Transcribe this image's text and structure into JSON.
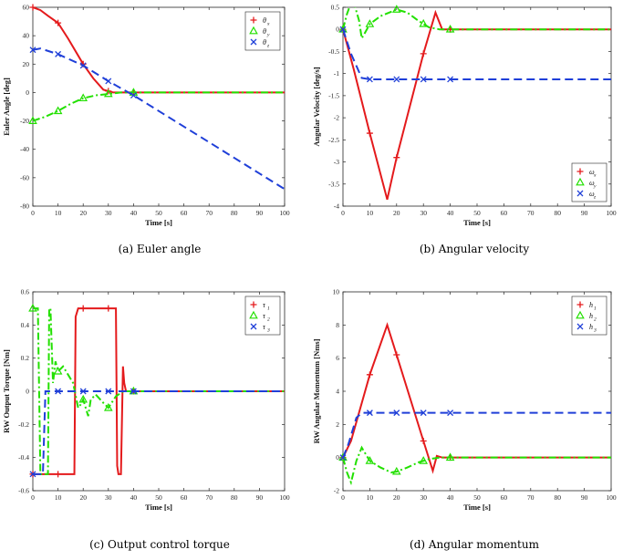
{
  "colors": {
    "red": "#e41a1c",
    "green": "#22e000",
    "blue": "#1f3fd8"
  },
  "chart_data": [
    {
      "type": "line",
      "caption": "(a) Euler angle",
      "xlabel": "Time [s]",
      "ylabel": "Euler Angle [deg]",
      "xlim": [
        0,
        100
      ],
      "ylim": [
        -80,
        60
      ],
      "xticks": [
        0,
        10,
        20,
        30,
        40,
        50,
        60,
        70,
        80,
        90,
        100
      ],
      "yticks": [
        -80,
        -60,
        -40,
        -20,
        0,
        20,
        40,
        60
      ],
      "legend_position": "top-right",
      "series": [
        {
          "name": "θx",
          "label_main": "θ",
          "label_sub": "x",
          "color": "red",
          "marker": "+",
          "dash": "solid",
          "x": [
            0,
            3,
            6,
            10,
            14,
            18,
            20,
            24,
            28,
            32,
            36,
            40,
            50,
            60,
            70,
            80,
            90,
            100
          ],
          "y": [
            60,
            58,
            54,
            49,
            38,
            26,
            20,
            10,
            2,
            0,
            0,
            0,
            0,
            0,
            0,
            0,
            0,
            0
          ]
        },
        {
          "name": "θy",
          "label_main": "θ",
          "label_sub": "y",
          "color": "green",
          "marker": "triangle",
          "dash": "dashdot",
          "x": [
            0,
            5,
            10,
            15,
            20,
            25,
            30,
            35,
            40,
            50,
            60,
            70,
            80,
            90,
            100
          ],
          "y": [
            -20,
            -17,
            -13,
            -8,
            -4,
            -2,
            -1,
            0,
            0,
            0,
            0,
            0,
            0,
            0,
            0
          ]
        },
        {
          "name": "θz",
          "label_main": "θ",
          "label_sub": "z",
          "color": "blue",
          "marker": "x",
          "dash": "dashed",
          "x": [
            0,
            3,
            10,
            20,
            30,
            40,
            50,
            60,
            70,
            80,
            90,
            100
          ],
          "y": [
            30,
            31,
            27,
            19,
            8,
            -2,
            -13,
            -24,
            -35,
            -46,
            -57,
            -68
          ]
        }
      ]
    },
    {
      "type": "line",
      "caption": "(b) Angular velocity",
      "xlabel": "Time [s]",
      "ylabel": "Angular Velocity [deg/s]",
      "xlim": [
        0,
        100
      ],
      "ylim": [
        -4,
        0.5
      ],
      "xticks": [
        0,
        10,
        20,
        30,
        40,
        50,
        60,
        70,
        80,
        90,
        100
      ],
      "yticks": [
        -4,
        -3.5,
        -3,
        -2.5,
        -2,
        -1.5,
        -1,
        -0.5,
        0,
        0.5
      ],
      "legend_position": "bottom-right",
      "series": [
        {
          "name": "ωx",
          "label_main": "ω",
          "label_sub": "x",
          "color": "red",
          "marker": "+",
          "dash": "solid",
          "x": [
            0,
            4,
            10,
            16.5,
            20,
            30,
            34.5,
            37,
            40,
            50,
            60,
            70,
            80,
            90,
            100
          ],
          "y": [
            0,
            -0.9,
            -2.35,
            -3.85,
            -2.9,
            -0.55,
            0.38,
            0.0,
            0.0,
            0,
            0,
            0,
            0,
            0,
            0
          ]
        },
        {
          "name": "ωy",
          "label_main": "ω",
          "label_sub": "y",
          "color": "green",
          "marker": "triangle",
          "dash": "dashdot",
          "x": [
            0,
            1.5,
            3,
            4,
            6,
            7,
            8,
            10,
            14,
            20,
            24,
            28,
            32,
            36,
            40,
            50,
            60,
            70,
            80,
            90,
            100
          ],
          "y": [
            0,
            0.35,
            0.6,
            0.62,
            0.2,
            -0.2,
            -0.1,
            0.12,
            0.3,
            0.45,
            0.38,
            0.2,
            0.05,
            0.0,
            0.0,
            0,
            0,
            0,
            0,
            0,
            0
          ]
        },
        {
          "name": "ωz",
          "label_main": "ω",
          "label_sub": "z",
          "color": "blue",
          "marker": "x",
          "dash": "dashed",
          "x": [
            0,
            3,
            7,
            10,
            20,
            30,
            40,
            50,
            60,
            70,
            80,
            90,
            100
          ],
          "y": [
            0,
            -0.55,
            -1.1,
            -1.13,
            -1.13,
            -1.13,
            -1.13,
            -1.13,
            -1.13,
            -1.13,
            -1.13,
            -1.13,
            -1.13
          ]
        }
      ]
    },
    {
      "type": "line",
      "caption": "(c) Output control torque",
      "xlabel": "Time [s]",
      "ylabel": "RW Output Torque [Nm]",
      "xlim": [
        0,
        100
      ],
      "ylim": [
        -0.6,
        0.6
      ],
      "xticks": [
        0,
        10,
        20,
        30,
        40,
        50,
        60,
        70,
        80,
        90,
        100
      ],
      "yticks": [
        -0.6,
        -0.4,
        -0.2,
        0,
        0.2,
        0.4,
        0.6
      ],
      "legend_position": "top-right",
      "series": [
        {
          "name": "τ1",
          "label_main": "τ",
          "label_sub": "1",
          "color": "red",
          "marker": "+",
          "dash": "solid",
          "x": [
            0,
            10,
            16.5,
            17,
            18,
            20,
            30,
            33,
            33.5,
            34,
            35,
            35.8,
            36.3,
            37,
            38,
            40,
            50,
            60,
            70,
            80,
            90,
            100
          ],
          "y": [
            -0.5,
            -0.5,
            -0.5,
            0.45,
            0.5,
            0.5,
            0.5,
            0.5,
            -0.45,
            -0.5,
            -0.5,
            0.15,
            0.05,
            0.0,
            0.0,
            0.0,
            0,
            0,
            0,
            0,
            0,
            0
          ]
        },
        {
          "name": "τ2",
          "label_main": "τ",
          "label_sub": "2",
          "color": "green",
          "marker": "triangle",
          "dash": "dashdot",
          "x": [
            0,
            1.5,
            2,
            3,
            3.5,
            6,
            6.5,
            7,
            8,
            9,
            10,
            12,
            14,
            16,
            18,
            19,
            20,
            21,
            22,
            23,
            25,
            28,
            30,
            33,
            36,
            40,
            50,
            60,
            70,
            80,
            90,
            100
          ],
          "y": [
            0.5,
            0.5,
            0.5,
            -0.5,
            -0.5,
            -0.5,
            0.5,
            0.5,
            0.05,
            0.18,
            0.12,
            0.15,
            0.1,
            0.05,
            -0.1,
            -0.08,
            -0.05,
            -0.1,
            -0.15,
            -0.05,
            -0.02,
            -0.07,
            -0.1,
            -0.03,
            0.0,
            0.0,
            0,
            0,
            0,
            0,
            0,
            0
          ]
        },
        {
          "name": "τ3",
          "label_main": "τ",
          "label_sub": "3",
          "color": "blue",
          "marker": "x",
          "dash": "dashed",
          "x": [
            0,
            2,
            4,
            5,
            7,
            10,
            20,
            30,
            40,
            50,
            60,
            70,
            80,
            90,
            100
          ],
          "y": [
            -0.5,
            -0.5,
            -0.5,
            0.0,
            0.0,
            0.0,
            0,
            0,
            0,
            0,
            0,
            0,
            0,
            0,
            0
          ]
        }
      ]
    },
    {
      "type": "line",
      "caption": "(d) Angular momentum",
      "xlabel": "Time [s]",
      "ylabel": "RW Angular Momentum [Nms]",
      "xlim": [
        0,
        100
      ],
      "ylim": [
        -2,
        10
      ],
      "xticks": [
        0,
        10,
        20,
        30,
        40,
        50,
        60,
        70,
        80,
        90,
        100
      ],
      "yticks": [
        -2,
        0,
        2,
        4,
        6,
        8,
        10
      ],
      "legend_position": "top-right",
      "series": [
        {
          "name": "h1",
          "label_main": "h",
          "label_sub": "1",
          "color": "red",
          "marker": "+",
          "dash": "solid",
          "x": [
            0,
            3,
            10,
            16.5,
            20,
            30,
            33.5,
            35,
            37,
            40,
            50,
            60,
            70,
            80,
            90,
            100
          ],
          "y": [
            0,
            1,
            5,
            8,
            6.2,
            1,
            -0.8,
            0.1,
            0.0,
            0.0,
            0,
            0,
            0,
            0,
            0,
            0
          ]
        },
        {
          "name": "h2",
          "label_main": "h",
          "label_sub": "2",
          "color": "green",
          "marker": "triangle",
          "dash": "dashdot",
          "x": [
            0,
            1.5,
            3,
            5,
            7,
            10,
            14,
            18,
            20,
            24,
            28,
            32,
            36,
            40,
            50,
            60,
            70,
            80,
            90,
            100
          ],
          "y": [
            0,
            -0.9,
            -1.5,
            -0.2,
            0.6,
            -0.2,
            -0.6,
            -0.9,
            -0.85,
            -0.6,
            -0.3,
            -0.1,
            0.0,
            0.0,
            0,
            0,
            0,
            0,
            0,
            0
          ]
        },
        {
          "name": "h3",
          "label_main": "h",
          "label_sub": "3",
          "color": "blue",
          "marker": "x",
          "dash": "dashed",
          "x": [
            0,
            2,
            5,
            7,
            10,
            20,
            30,
            40,
            50,
            60,
            70,
            80,
            90,
            100
          ],
          "y": [
            0,
            0.8,
            2.4,
            2.7,
            2.7,
            2.7,
            2.7,
            2.7,
            2.7,
            2.7,
            2.7,
            2.7,
            2.7,
            2.7
          ]
        }
      ]
    }
  ]
}
